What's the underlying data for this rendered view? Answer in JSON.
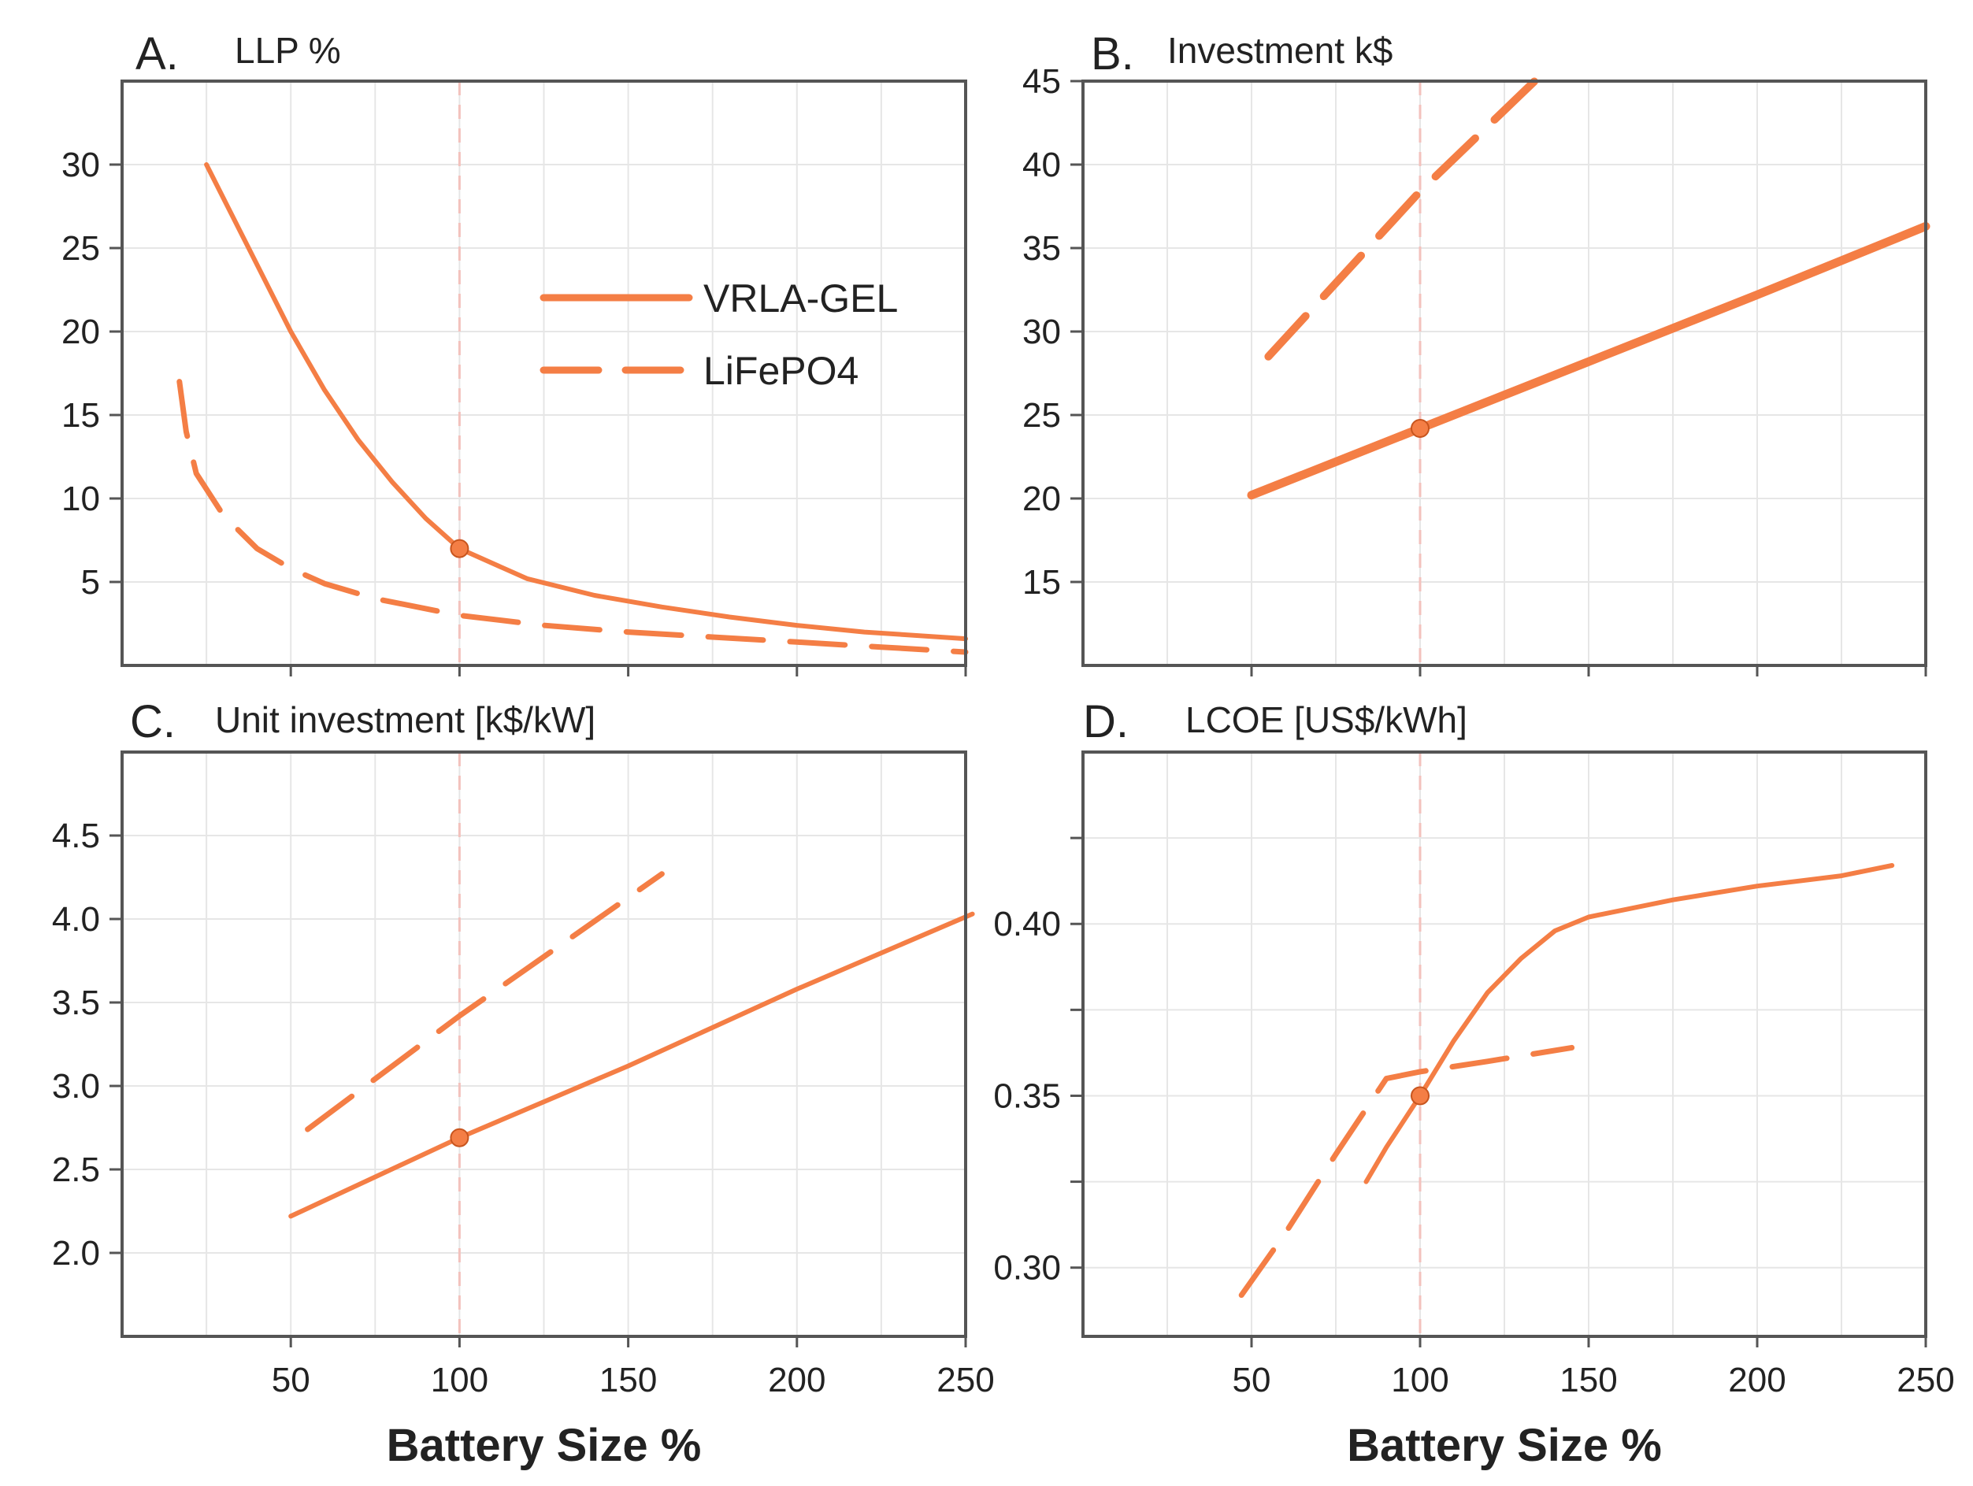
{
  "colors": {
    "series": "#f47e45",
    "frame": "#555555",
    "grid": "#e6e6e6",
    "reference_line": "#f3c2bd"
  },
  "legend": {
    "placement": "upper-center of panel A",
    "items": [
      {
        "label": "VRLA-GEL",
        "style": "solid"
      },
      {
        "label": "LiFePO4",
        "style": "dashed"
      }
    ]
  },
  "chart_data": [
    {
      "panel": "A.",
      "title": "LLP %",
      "type": "line",
      "xlabel": "",
      "ylabel": "",
      "xlim": [
        0,
        250
      ],
      "ylim": [
        0,
        35
      ],
      "xticks": [
        50,
        100,
        150,
        200,
        250
      ],
      "xtick_labels_shown": false,
      "yticks": [
        5,
        10,
        15,
        20,
        25,
        30
      ],
      "grid": true,
      "reference_x": 100,
      "marker": {
        "x": 100,
        "y": 7
      },
      "series": [
        {
          "name": "VRLA-GEL",
          "style": "solid",
          "width": 6,
          "points": [
            [
              25,
              30
            ],
            [
              30,
              28
            ],
            [
              40,
              24
            ],
            [
              50,
              20
            ],
            [
              60,
              16.5
            ],
            [
              70,
              13.5
            ],
            [
              80,
              11
            ],
            [
              90,
              8.8
            ],
            [
              100,
              7
            ],
            [
              120,
              5.2
            ],
            [
              140,
              4.2
            ],
            [
              160,
              3.5
            ],
            [
              180,
              2.9
            ],
            [
              200,
              2.4
            ],
            [
              220,
              2
            ],
            [
              250,
              1.6
            ]
          ]
        },
        {
          "name": "LiFePO4",
          "style": "dashed",
          "width": 7,
          "points": [
            [
              17,
              17
            ],
            [
              19,
              14
            ],
            [
              22,
              11.5
            ],
            [
              30,
              9
            ],
            [
              40,
              7
            ],
            [
              50,
              5.8
            ],
            [
              60,
              4.9
            ],
            [
              75,
              4
            ],
            [
              100,
              3
            ],
            [
              125,
              2.4
            ],
            [
              150,
              2
            ],
            [
              175,
              1.7
            ],
            [
              200,
              1.4
            ],
            [
              225,
              1.1
            ],
            [
              250,
              0.8
            ]
          ]
        }
      ]
    },
    {
      "panel": "B.",
      "title": "Investment k$",
      "type": "line",
      "xlabel": "",
      "ylabel": "",
      "xlim": [
        0,
        250
      ],
      "ylim": [
        10,
        45
      ],
      "xticks": [
        50,
        100,
        150,
        200,
        250
      ],
      "xtick_labels_shown": false,
      "yticks": [
        15,
        20,
        25,
        30,
        35,
        40,
        45
      ],
      "grid": true,
      "reference_x": 100,
      "marker": {
        "x": 100,
        "y": 24.2
      },
      "series": [
        {
          "name": "VRLA-GEL",
          "style": "solid",
          "width": 11,
          "points": [
            [
              50,
              20.2
            ],
            [
              100,
              24.2
            ],
            [
              150,
              28.2
            ],
            [
              200,
              32.2
            ],
            [
              250,
              36.3
            ]
          ]
        },
        {
          "name": "LiFePO4",
          "style": "dashed",
          "width": 10,
          "points": [
            [
              55,
              28.5
            ],
            [
              100,
              38.4
            ],
            [
              135,
              45.2
            ]
          ]
        }
      ]
    },
    {
      "panel": "C.",
      "title": "Unit investment [k$/kW]",
      "type": "line",
      "xlabel": "Battery Size %",
      "ylabel": "",
      "xlim": [
        0,
        250
      ],
      "ylim": [
        1.5,
        5.0
      ],
      "xticks": [
        50,
        100,
        150,
        200,
        250
      ],
      "xtick_labels_shown": true,
      "yticks": [
        2.0,
        2.5,
        3.0,
        3.5,
        4.0,
        4.5
      ],
      "ytick_labels": [
        "2.0",
        "2.5",
        "3.0",
        "3.5",
        "4.0",
        "4.5"
      ],
      "grid": true,
      "reference_x": 100,
      "marker": {
        "x": 100,
        "y": 2.69
      },
      "series": [
        {
          "name": "VRLA-GEL",
          "style": "solid",
          "width": 6,
          "points": [
            [
              50,
              2.22
            ],
            [
              100,
              2.69
            ],
            [
              150,
              3.12
            ],
            [
              200,
              3.58
            ],
            [
              252,
              4.03
            ]
          ]
        },
        {
          "name": "LiFePO4",
          "style": "dashed",
          "width": 7,
          "points": [
            [
              55,
              2.74
            ],
            [
              100,
              3.42
            ],
            [
              160,
              4.27
            ]
          ]
        }
      ]
    },
    {
      "panel": "D.",
      "title": "LCOE  [US$/kWh]",
      "type": "line",
      "xlabel": "Battery Size %",
      "ylabel": "",
      "xlim": [
        0,
        250
      ],
      "ylim": [
        0.28,
        0.45
      ],
      "xticks": [
        50,
        100,
        150,
        200,
        250
      ],
      "xtick_labels_shown": true,
      "yticks": [
        0.3,
        0.35,
        0.4
      ],
      "ytick_labels": [
        "0.30",
        "0.35",
        "0.40"
      ],
      "minor_yticks": [
        0.325,
        0.375,
        0.425
      ],
      "grid": true,
      "reference_x": 100,
      "marker": {
        "x": 100,
        "y": 0.35
      },
      "series": [
        {
          "name": "VRLA-GEL",
          "style": "solid",
          "width": 6,
          "points": [
            [
              84,
              0.325
            ],
            [
              90,
              0.335
            ],
            [
              100,
              0.35
            ],
            [
              110,
              0.366
            ],
            [
              120,
              0.38
            ],
            [
              130,
              0.39
            ],
            [
              140,
              0.398
            ],
            [
              150,
              0.402
            ],
            [
              175,
              0.407
            ],
            [
              200,
              0.411
            ],
            [
              225,
              0.414
            ],
            [
              240,
              0.417
            ]
          ]
        },
        {
          "name": "LiFePO4",
          "style": "dashed",
          "width": 7,
          "points": [
            [
              47,
              0.292
            ],
            [
              60,
              0.31
            ],
            [
              75,
              0.333
            ],
            [
              90,
              0.355
            ],
            [
              100,
              0.357
            ],
            [
              120,
              0.36
            ],
            [
              145,
              0.364
            ]
          ]
        }
      ]
    }
  ]
}
